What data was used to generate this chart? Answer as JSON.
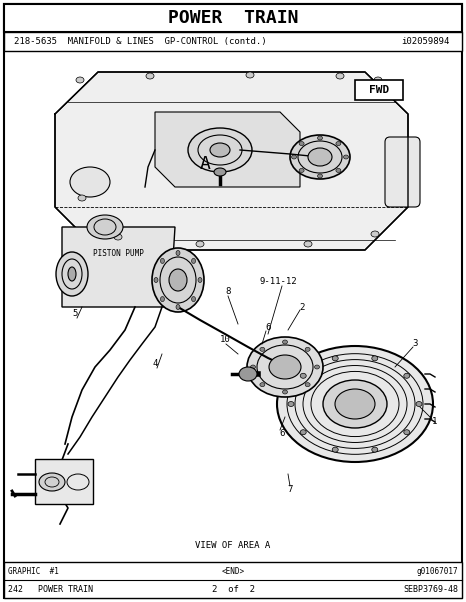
{
  "title": "POWER  TRAIN",
  "subtitle_left": "218-5635  MANIFOLD & LINES  GP-CONTROL (contd.)",
  "subtitle_right": "i02059894",
  "footer_line1_left": "GRAPHIC  #1",
  "footer_line1_center": "<END>",
  "footer_line1_right": "g01067017",
  "footer_line2_left": "242   POWER TRAIN",
  "footer_line2_center": "2  of  2",
  "footer_line2_right": "SEBP3769-48",
  "view_label": "VIEW OF AREA A",
  "fwd_label": "FWD",
  "area_label": "A",
  "piston_pump_label": "PISTON PUMP",
  "bg_color": "#ffffff",
  "border_color": "#000000",
  "text_color": "#000000",
  "fig_width": 4.66,
  "fig_height": 6.02,
  "dpi": 100
}
